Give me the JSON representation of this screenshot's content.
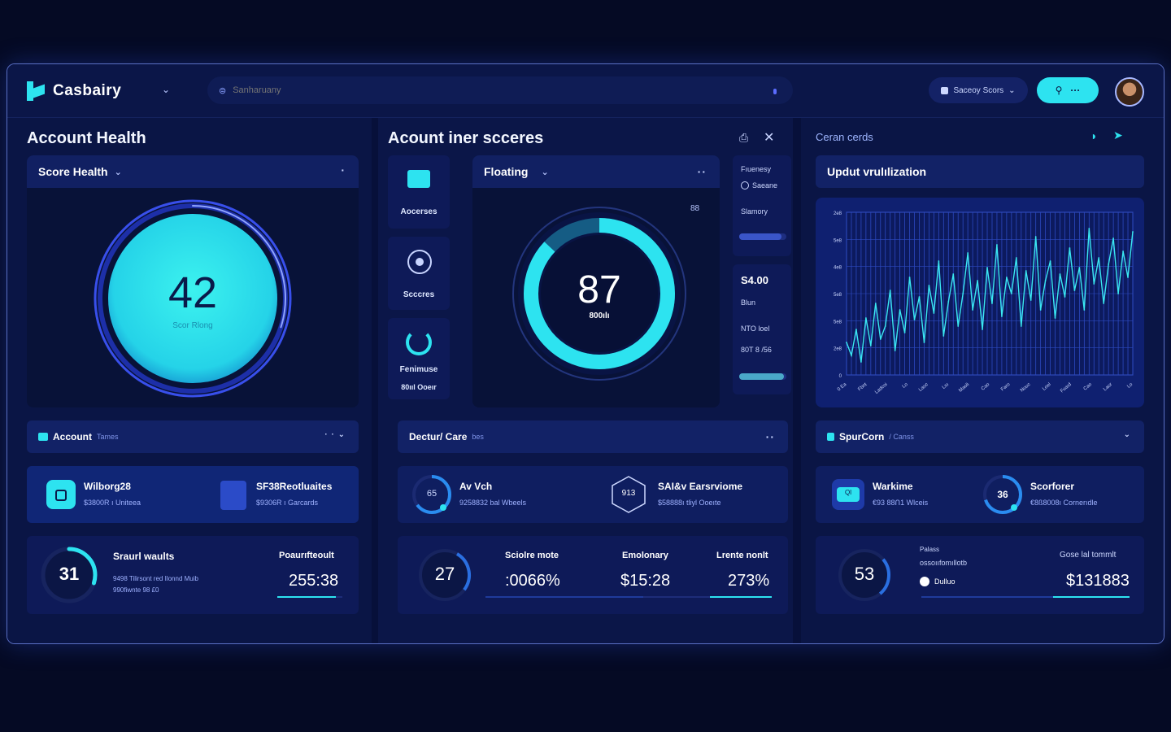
{
  "app": {
    "name": "Casbairy",
    "search_placeholder": "Sanharuany",
    "score_select": "Saceoy Scors",
    "action_dots": "···"
  },
  "colors": {
    "accent": "#2de3f0",
    "bg": "#0a1440",
    "panel": "#0c1a55"
  },
  "left": {
    "title": "Account Health",
    "card_title": "Score Health",
    "score": "42",
    "score_label": "Scor Rlong",
    "score_fraction": 0.42,
    "strip_title": "Account",
    "strip_sub": "Tames",
    "tiles": [
      {
        "label": "Wilborg28",
        "sub": "$3800R ı Uniteea"
      },
      {
        "label": "SF38Reotluaites",
        "sub": "$9306R ı Garcards"
      }
    ],
    "stat": {
      "ring": "31",
      "title": "Sraurl waults",
      "desc1": "9498 Tilirsont red Ilonnd Muib",
      "desc2": "990fiwnte 98 £0",
      "col_head": "Poaurıfteoult",
      "value": "255:38",
      "progress": 0.9
    }
  },
  "middle": {
    "title": "Acount iner scceres",
    "side": [
      {
        "label": "Aocerses",
        "icon": "basket-icon"
      },
      {
        "label": "Scccres",
        "icon": "target-icon"
      },
      {
        "label": "Fenimuse",
        "label2": "80ııl Ooeır",
        "icon": "refresh-icon"
      }
    ],
    "card_title": "Floating",
    "score": "87",
    "score_label": "800ılı",
    "score_fraction": 0.87,
    "score_side": "88",
    "mini1": {
      "l1": "Fıuenesy",
      "l2": "Saeane",
      "l3": "Slamory",
      "progress": 0.9
    },
    "mini2": {
      "value": "S4.00",
      "l1": "Blun",
      "l2": "NTO loel",
      "l3": "80T 8 /56",
      "progress": 0.95
    },
    "strip_title": "Dectur/ Care",
    "strip_sub": "bes",
    "tiles": [
      {
        "ring": "65",
        "label": "Av Vch",
        "sub": "9258832 bal Wbeels"
      },
      {
        "ring": "913",
        "label": "SAI&v Earsrviome",
        "sub": "$58888ı tliyl Ooeıte"
      }
    ],
    "stat": {
      "ring": "27",
      "cols": [
        {
          "head": "Sciolre mote",
          "value": ":0066%"
        },
        {
          "head": "Emolonary",
          "value": "$15:28"
        },
        {
          "head": "Lrente nonlt",
          "value": "273%"
        }
      ],
      "progress": 0.55
    }
  },
  "right": {
    "title": "Ceran cerds",
    "card_title": "Updut vrulılization",
    "chart_data": {
      "type": "line",
      "title": "",
      "y_ticks": [
        "0",
        "2e8",
        "5e8",
        "5e8",
        "4e8",
        "5e8",
        "2e8"
      ],
      "x_ticks": [
        "0 Ea",
        "Fbnt",
        "Ladcoi",
        "Lo",
        "Laoc",
        "Lıu",
        "Maoli",
        "Cao",
        "Faro",
        "Nouc",
        "Loel",
        "Fuaıd",
        "Cao",
        "Laor",
        "Lo"
      ],
      "series": [
        {
          "values": [
            20,
            12,
            28,
            8,
            35,
            18,
            44,
            22,
            30,
            52,
            15,
            40,
            26,
            60,
            34,
            48,
            20,
            55,
            38,
            70,
            24,
            45,
            62,
            30,
            50,
            75,
            40,
            58,
            28,
            66,
            44,
            80,
            36,
            60,
            50,
            72,
            30,
            64,
            46,
            85,
            40,
            58,
            70,
            35,
            62,
            48,
            78,
            52,
            66,
            40,
            90,
            56,
            72,
            44,
            68,
            84,
            50,
            76,
            60,
            88
          ]
        }
      ],
      "ylim": [
        0,
        100
      ],
      "grid": true
    },
    "strip_title": "SpurCorn",
    "strip_sub": "/ Canss",
    "tiles": [
      {
        "ring": "Ql",
        "label": "Warkime",
        "sub": "€93 88Ո1 Wlceis"
      },
      {
        "ring": "36",
        "label": "Scorforer",
        "sub": "€8ß8008ı Cornerıdle"
      }
    ],
    "stat": {
      "ring": "53",
      "t1": "Palass",
      "t2": "ossoııfomıllotb",
      "t3": "Dulluo",
      "col_head": "Gose lal tommlt",
      "value": "$131883",
      "progress": 0.7
    }
  }
}
